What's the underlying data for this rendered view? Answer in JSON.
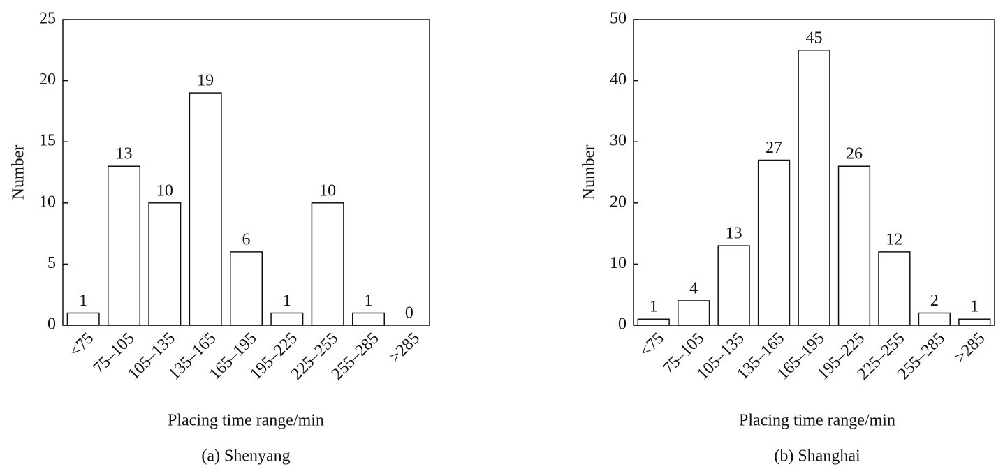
{
  "chart_data": [
    {
      "type": "bar",
      "caption": "(a) Shenyang",
      "xlabel": "Placing time range/min",
      "ylabel": "Number",
      "categories": [
        "<75",
        "75–105",
        "105–135",
        "135–165",
        "165–195",
        "195–225",
        "225–255",
        "255–285",
        ">285"
      ],
      "values": [
        1,
        13,
        10,
        19,
        6,
        1,
        10,
        1,
        0
      ],
      "color": "#ffffff",
      "ylim": [
        0,
        25
      ],
      "yticks": [
        0,
        5,
        10,
        15,
        20,
        25
      ]
    },
    {
      "type": "bar",
      "caption": "(b) Shanghai",
      "xlabel": "Placing time range/min",
      "ylabel": "Number",
      "categories": [
        "<75",
        "75–105",
        "105–135",
        "135–165",
        "165–195",
        "195–225",
        "225–255",
        "255–285",
        ">285"
      ],
      "values": [
        1,
        4,
        13,
        27,
        45,
        26,
        12,
        2,
        1
      ],
      "color": "#ffffff",
      "ylim": [
        0,
        50
      ],
      "yticks": [
        0,
        10,
        20,
        30,
        40,
        50
      ]
    }
  ]
}
